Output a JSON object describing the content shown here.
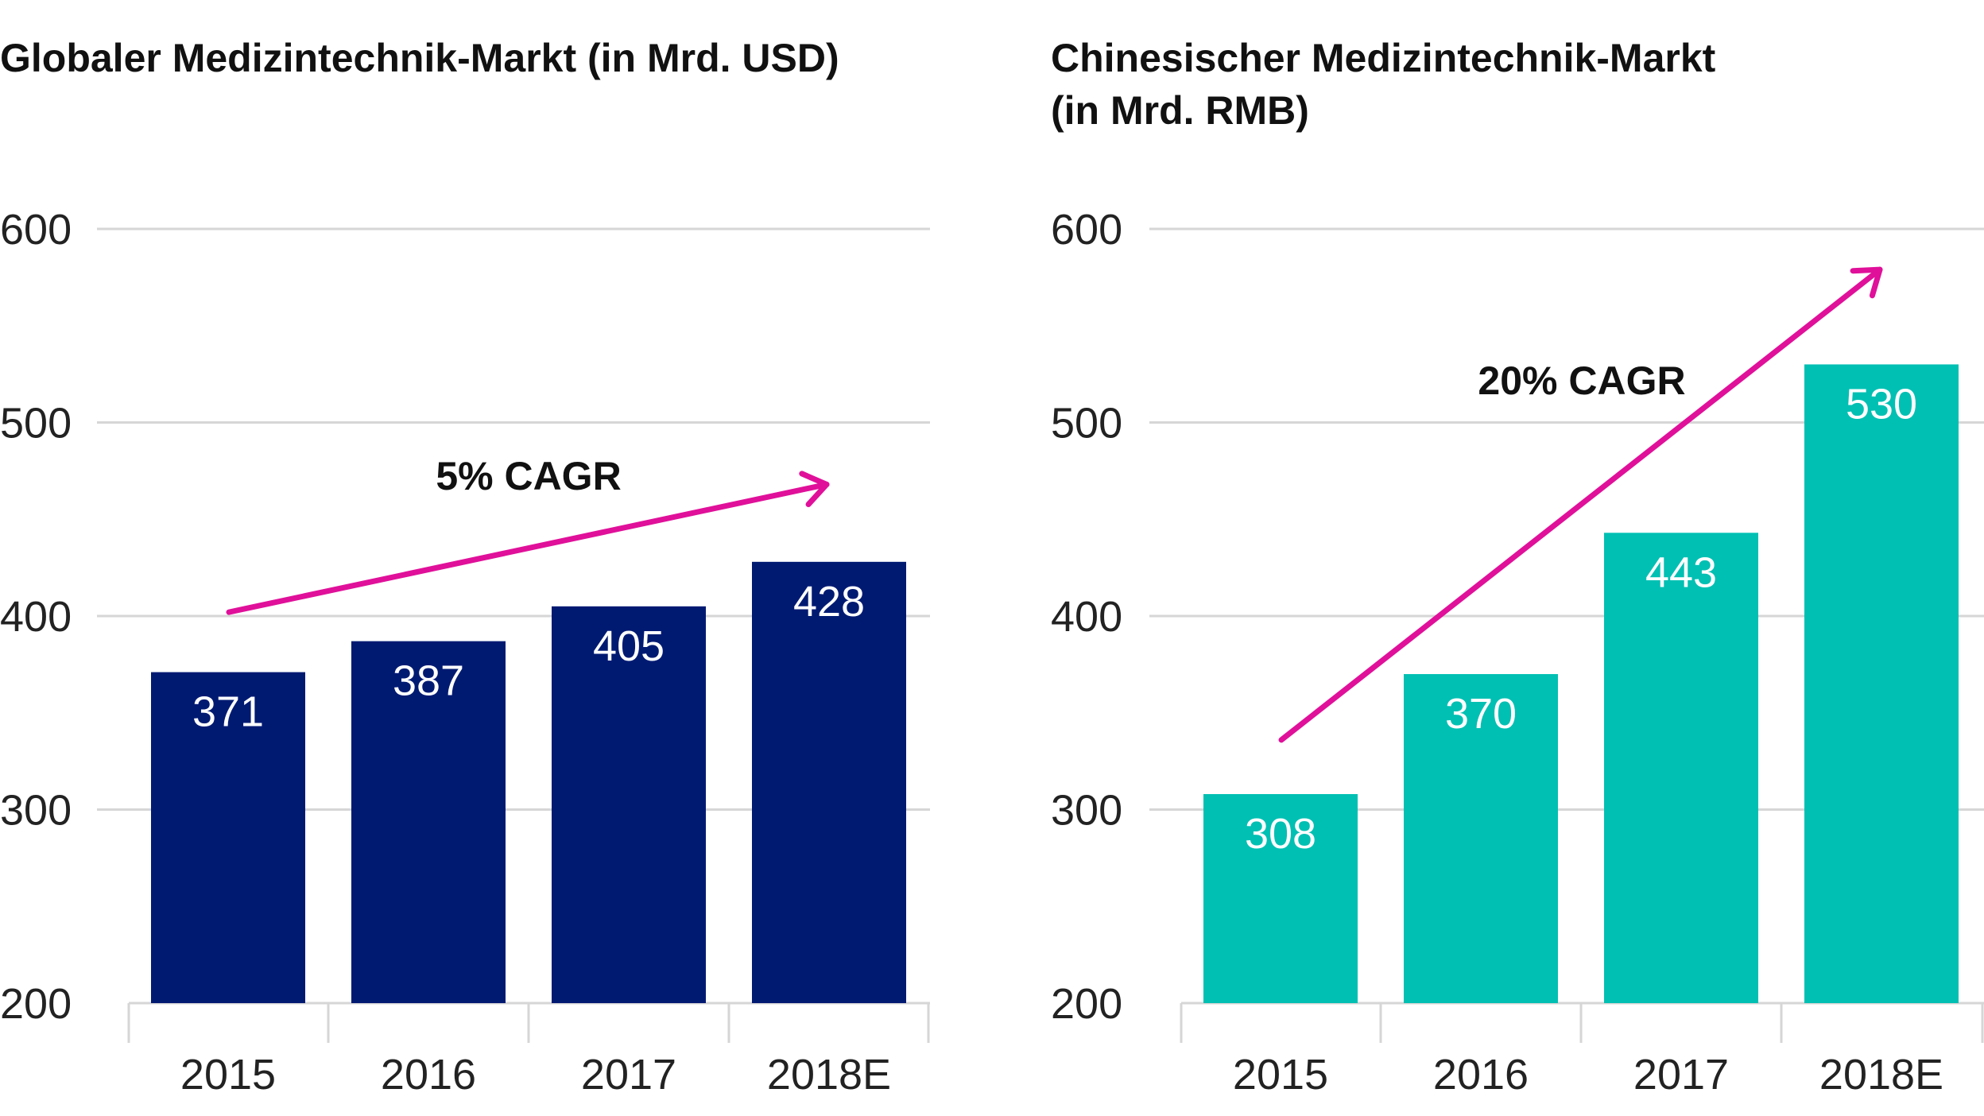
{
  "chart_data": [
    {
      "type": "bar",
      "title": "Globaler Medizintechnik-Markt (in Mrd. USD)",
      "categories": [
        "2015",
        "2016",
        "2017",
        "2018E"
      ],
      "values": [
        371,
        387,
        405,
        428
      ],
      "ylim": [
        200,
        600
      ],
      "yticks": [
        "200",
        "300",
        "400",
        "500",
        "600"
      ],
      "grid": true,
      "bar_color": "#001a72",
      "annotation": "5% CAGR",
      "arrow_color": "#e0109a"
    },
    {
      "type": "bar",
      "title": "Chinesischer Medizintechnik-Markt (in Mrd. RMB)",
      "title_lines": [
        "Chinesischer Medizintechnik-Markt",
        "(in Mrd. RMB)"
      ],
      "categories": [
        "2015",
        "2016",
        "2017",
        "2018E"
      ],
      "values": [
        308,
        370,
        443,
        530
      ],
      "ylim": [
        200,
        600
      ],
      "yticks": [
        "200",
        "300",
        "400",
        "500",
        "600"
      ],
      "grid": true,
      "bar_color": "#00c0b3",
      "annotation": "20% CAGR",
      "arrow_color": "#e0109a"
    }
  ]
}
